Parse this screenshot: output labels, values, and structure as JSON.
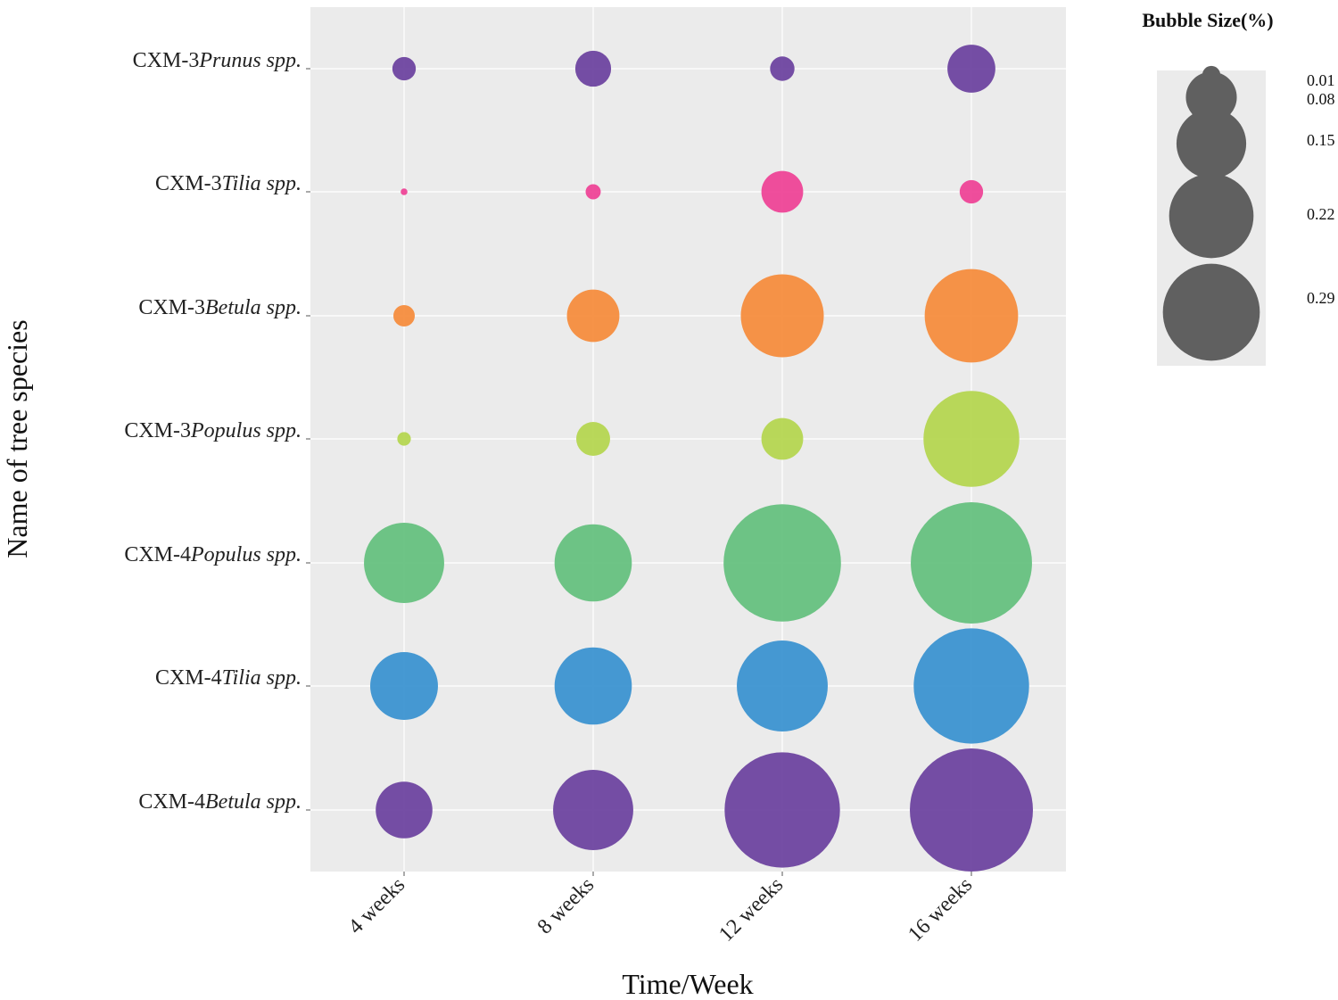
{
  "chart_data": {
    "type": "scatter",
    "subtype": "bubble",
    "xlabel": "Time/Week",
    "ylabel": "Name of tree species",
    "x_categories": [
      "4 weeks",
      "8 weeks",
      "12 weeks",
      "16 weeks"
    ],
    "y_categories": [
      {
        "prefix": "CXM-3",
        "genus": "Prunus",
        "suffix": "spp.",
        "color": "#6e45a0"
      },
      {
        "prefix": "CXM-3",
        "genus": "Tilia",
        "suffix": "spp.",
        "color": "#ee4597"
      },
      {
        "prefix": "CXM-3",
        "genus": "Betula",
        "suffix": "spp.",
        "color": "#f58d3e"
      },
      {
        "prefix": "CXM-3",
        "genus": "Populus",
        "suffix": "spp.",
        "color": "#b5d651"
      },
      {
        "prefix": "CXM-4",
        "genus": "Populus",
        "suffix": "spp.",
        "color": "#66c17f"
      },
      {
        "prefix": "CXM-4",
        "genus": "Tilia",
        "suffix": "spp.",
        "color": "#3c93d1"
      },
      {
        "prefix": "CXM-4",
        "genus": "Betula",
        "suffix": "spp.",
        "color": "#6e45a0"
      }
    ],
    "values": [
      [
        0.012,
        0.028,
        0.013,
        0.05
      ],
      [
        0.001,
        0.005,
        0.038,
        0.012
      ],
      [
        0.01,
        0.06,
        0.15,
        0.19
      ],
      [
        0.004,
        0.025,
        0.038,
        0.2
      ],
      [
        0.14,
        0.13,
        0.3,
        0.32
      ],
      [
        0.1,
        0.13,
        0.18,
        0.29
      ],
      [
        0.07,
        0.14,
        0.29,
        0.33
      ]
    ],
    "size_legend": {
      "title": "Bubble Size(%)",
      "values": [
        0.01,
        0.08,
        0.15,
        0.22,
        0.29
      ],
      "labels": [
        "0.01",
        "0.08",
        "0.15",
        "0.22",
        "0.29"
      ]
    },
    "grid": true,
    "legend_position": "top-right"
  }
}
